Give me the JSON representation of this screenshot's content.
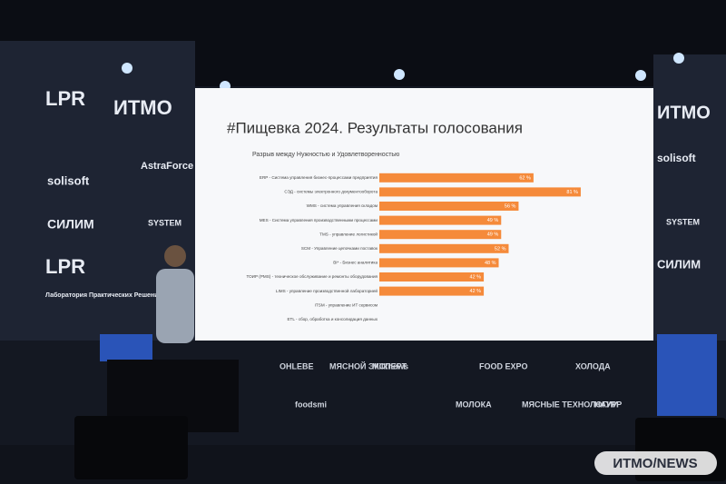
{
  "chart_data": {
    "type": "bar",
    "orientation": "horizontal",
    "title": "#Пищевка 2024. Результаты голосования",
    "subtitle": "Разрыв между Нужностью и Удовлетворенностью",
    "categories": [
      "ERP - Система управления бизнес-процессами предприятия",
      "СЭД - системы электронного документооборота",
      "WMS - система управления складом",
      "MES - Система управления производственными процессами",
      "TMS - управление логистикой",
      "SCM - Управление цепочками поставок",
      "BI* - Бизнес аналитика",
      "ТОИР (PMS) - техническое обслуживание и ремонты оборудования",
      "LIMS - управление производственной лабораторией",
      "ITSM - управление ИТ сервисом",
      "ETL - сбор, обработка и консолидация данных"
    ],
    "values": [
      62,
      81,
      56,
      49,
      49,
      52,
      48,
      42,
      42,
      null,
      null
    ],
    "value_labels": [
      "62 %",
      "81 %",
      "56 %",
      "49 %",
      "49 %",
      "52 %",
      "48 %",
      "42 %",
      "42 %",
      null,
      null
    ],
    "color": "#f58a3a",
    "xlim": [
      0,
      100
    ]
  },
  "scene": {
    "left_logos": [
      "LPR",
      "ИТМО",
      "solisoft",
      "AstraForce",
      "СИЛИМ",
      "SYSTEM",
      "LPR",
      "Лаборатория Практических Решений"
    ],
    "right_logos": [
      "ИТМО",
      "solisoft",
      "SYSTEM",
      "СИЛИМ"
    ],
    "sponsors": [
      "OHLEBE",
      "МЯСНОЙ ЭКСПЕРТ",
      "Milknews",
      "FOOD EXPO",
      "ХОЛОДА",
      "foodsmi",
      "МОЛОКА",
      "МЯСНЫЕ ТЕХНОЛОГИИ",
      "НАУРР"
    ],
    "watermark": "ИТМО/NEWS"
  }
}
